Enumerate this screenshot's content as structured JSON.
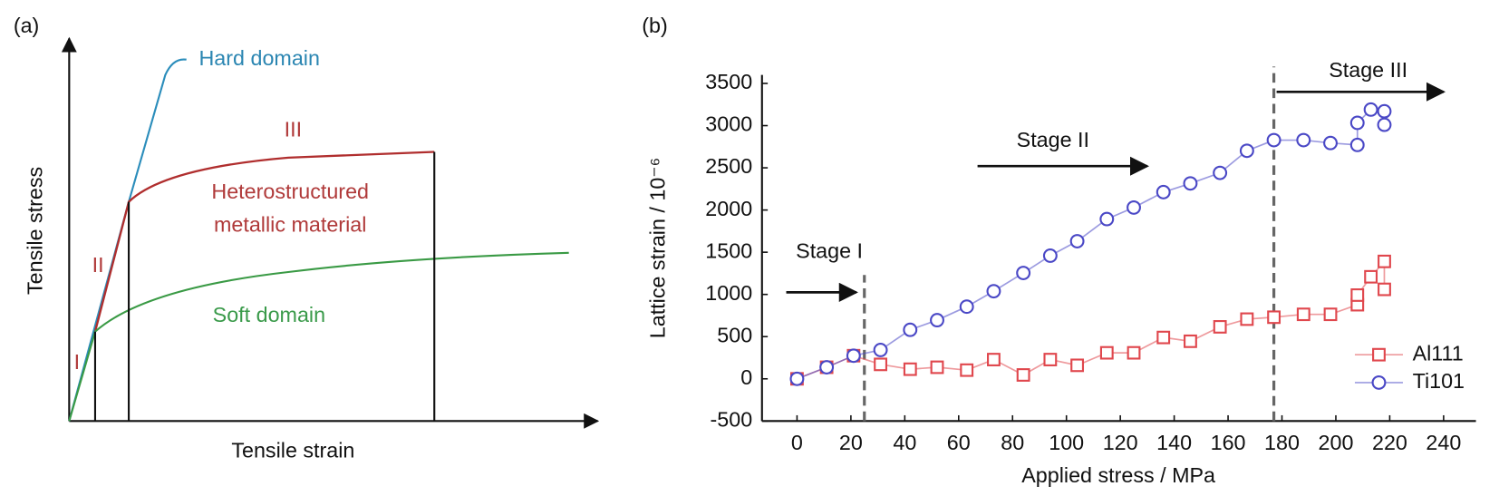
{
  "chart_data": [
    {
      "type": "schematic",
      "panel_label": "(a)",
      "xlabel": "Tensile strain",
      "ylabel": "Tensile stress",
      "labels": {
        "hard": "Hard domain",
        "stage3": "III",
        "hetero1": "Heterostructured",
        "hetero2": "metallic material",
        "stage2": "II",
        "soft": "Soft domain",
        "stage1": "I"
      }
    },
    {
      "type": "line",
      "panel_label": "(b)",
      "xlabel": "Applied stress / MPa",
      "ylabel": "Lattice strain / 10⁻⁶",
      "x": [
        0,
        11,
        21,
        31,
        42,
        52,
        63,
        73,
        84,
        94,
        104,
        115,
        125,
        136,
        146,
        157,
        167,
        177,
        188,
        198,
        208,
        208,
        213,
        218,
        218
      ],
      "series": [
        {
          "name": "Al111",
          "color": "#e0474d",
          "marker": "square",
          "values": [
            0,
            137,
            274,
            171,
            114,
            137,
            103,
            228,
            46,
            228,
            160,
            308,
            308,
            490,
            445,
            616,
            707,
            730,
            764,
            764,
            878,
            992,
            1209,
            1391,
            1060
          ]
        },
        {
          "name": "Ti101",
          "color": "#4a48c6",
          "marker": "circle",
          "values": [
            0,
            137,
            274,
            342,
            581,
            695,
            855,
            1038,
            1254,
            1459,
            1630,
            1893,
            2029,
            2212,
            2315,
            2440,
            2702,
            2828,
            2828,
            2794,
            2771,
            3033,
            3190,
            3170,
            3010
          ]
        }
      ],
      "xlim": [
        -13,
        252
      ],
      "ylim": [
        -500,
        3600
      ],
      "xticks": [
        0,
        20,
        40,
        60,
        80,
        100,
        120,
        140,
        160,
        180,
        200,
        220,
        240
      ],
      "yticks": [
        -500,
        0,
        500,
        1000,
        1500,
        2000,
        2500,
        3000,
        3500
      ],
      "vlines": [
        {
          "x": 25,
          "y_top": 1230
        },
        {
          "x": 177,
          "y_top": 3700
        }
      ],
      "annotations": [
        {
          "text": "Stage I",
          "x": 12,
          "y": 1500
        },
        {
          "text": "Stage II",
          "x": 95,
          "y": 2816
        },
        {
          "text": "Stage III",
          "x": 212,
          "y": 3640
        }
      ],
      "arrows": [
        {
          "x": [
            -4,
            22
          ],
          "y": 1025
        },
        {
          "x": [
            67,
            130
          ],
          "y": 2520
        },
        {
          "x": [
            178,
            240
          ],
          "y": 3400
        }
      ],
      "legend": "lower right"
    }
  ]
}
